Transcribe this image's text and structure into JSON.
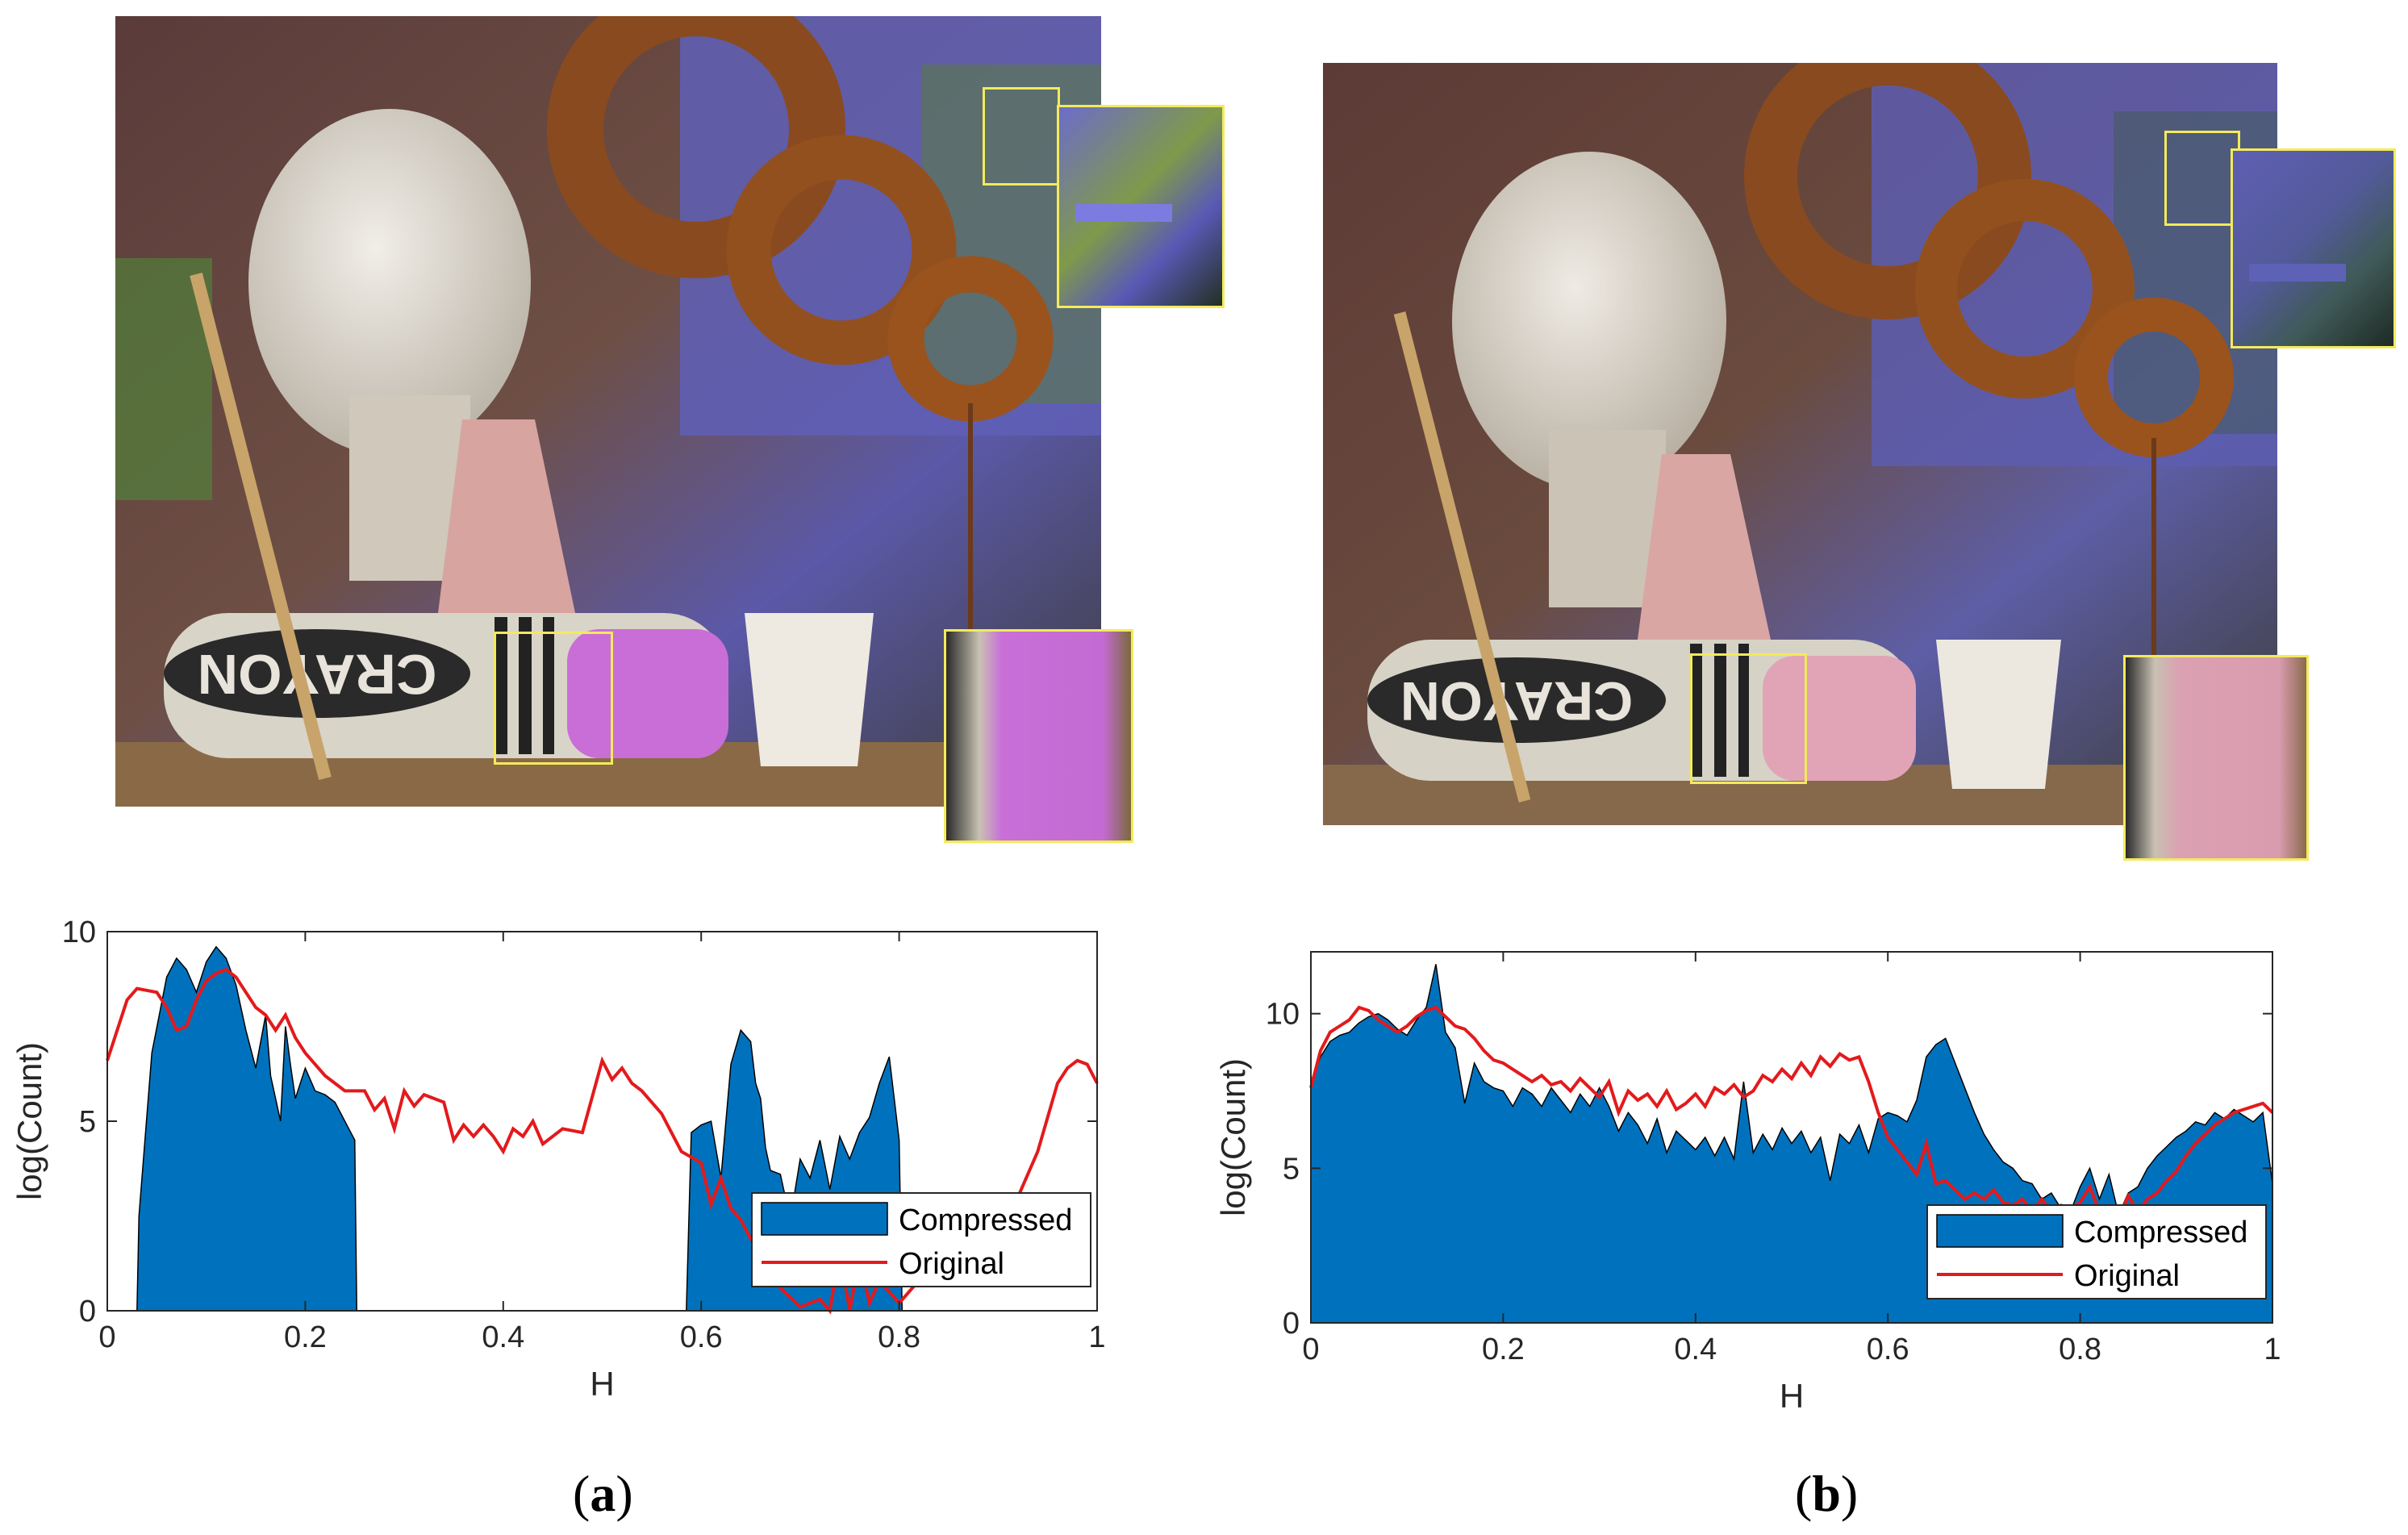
{
  "figure": {
    "label_a": "(a)",
    "label_a_letter": "a",
    "label_b": "(b)",
    "label_b_letter": "b"
  },
  "photos": [
    {
      "panel": "a",
      "crayon_text": "CRAYON",
      "variant": "compressed"
    },
    {
      "panel": "b",
      "crayon_text": "CRAYON",
      "variant": "original"
    }
  ],
  "colors": {
    "compressed_fill": "#0072bd",
    "original_line": "#e31a1c",
    "roi_box": "#f3ea5b"
  },
  "chart_data": [
    {
      "type": "area",
      "panel": "a",
      "xlabel": "H",
      "ylabel": "log(Count)",
      "xlim": [
        0,
        1
      ],
      "ylim": [
        0,
        10
      ],
      "xticks": [
        "0",
        "0.2",
        "0.4",
        "0.6",
        "0.8",
        "1"
      ],
      "yticks": [
        "0",
        "5",
        "10"
      ],
      "legend_position": "bottom-right",
      "series": [
        {
          "name": "Compressed",
          "style": "filled-area",
          "x": [
            0,
            0.03,
            0.032,
            0.045,
            0.06,
            0.07,
            0.08,
            0.09,
            0.1,
            0.11,
            0.12,
            0.13,
            0.14,
            0.15,
            0.16,
            0.165,
            0.17,
            0.175,
            0.18,
            0.185,
            0.19,
            0.2,
            0.21,
            0.22,
            0.23,
            0.25,
            0.252,
            0.585,
            0.59,
            0.6,
            0.61,
            0.62,
            0.63,
            0.64,
            0.65,
            0.655,
            0.66,
            0.665,
            0.67,
            0.68,
            0.69,
            0.7,
            0.71,
            0.72,
            0.73,
            0.74,
            0.75,
            0.76,
            0.77,
            0.78,
            0.79,
            0.8,
            0.803,
            1
          ],
          "y": [
            0,
            0,
            2.5,
            6.8,
            8.8,
            9.3,
            9.0,
            8.4,
            9.2,
            9.6,
            9.3,
            8.6,
            7.4,
            6.4,
            7.8,
            6.2,
            5.6,
            5.0,
            7.5,
            6.5,
            5.6,
            6.4,
            5.8,
            5.7,
            5.5,
            4.5,
            0,
            0,
            4.7,
            4.9,
            5.0,
            3.5,
            6.5,
            7.4,
            7.1,
            6.0,
            5.6,
            4.3,
            3.7,
            3.6,
            2.4,
            4.0,
            3.5,
            4.5,
            3.2,
            4.6,
            4.0,
            4.7,
            5.1,
            6.0,
            6.7,
            4.5,
            0,
            0
          ]
        },
        {
          "name": "Original",
          "style": "line",
          "x": [
            0,
            0.02,
            0.03,
            0.05,
            0.06,
            0.07,
            0.08,
            0.09,
            0.1,
            0.11,
            0.12,
            0.13,
            0.14,
            0.15,
            0.16,
            0.17,
            0.18,
            0.19,
            0.2,
            0.22,
            0.24,
            0.26,
            0.27,
            0.28,
            0.29,
            0.3,
            0.31,
            0.32,
            0.34,
            0.35,
            0.36,
            0.37,
            0.38,
            0.39,
            0.4,
            0.41,
            0.42,
            0.43,
            0.44,
            0.46,
            0.48,
            0.5,
            0.51,
            0.52,
            0.53,
            0.54,
            0.56,
            0.58,
            0.6,
            0.61,
            0.62,
            0.63,
            0.64,
            0.65,
            0.66,
            0.67,
            0.68,
            0.7,
            0.72,
            0.73,
            0.74,
            0.75,
            0.76,
            0.77,
            0.78,
            0.79,
            0.8,
            0.82,
            0.84,
            0.86,
            0.88,
            0.9,
            0.92,
            0.94,
            0.95,
            0.96,
            0.97,
            0.98,
            0.99,
            1
          ],
          "y": [
            6.6,
            8.2,
            8.5,
            8.4,
            8.0,
            7.4,
            7.5,
            8.2,
            8.7,
            8.9,
            9.0,
            8.8,
            8.4,
            8.0,
            7.8,
            7.4,
            7.8,
            7.2,
            6.8,
            6.2,
            5.8,
            5.8,
            5.3,
            5.6,
            4.8,
            5.8,
            5.4,
            5.7,
            5.5,
            4.5,
            4.9,
            4.6,
            4.9,
            4.6,
            4.2,
            4.8,
            4.6,
            5.0,
            4.4,
            4.8,
            4.7,
            6.6,
            6.1,
            6.4,
            6.0,
            5.8,
            5.2,
            4.2,
            3.9,
            2.8,
            3.5,
            2.7,
            2.4,
            1.9,
            2.1,
            1.6,
            0.6,
            0.1,
            0.3,
            0.0,
            1.6,
            0.0,
            1.4,
            0.2,
            0.8,
            0.5,
            0.2,
            0.8,
            1.4,
            1.6,
            2.0,
            2.2,
            3.0,
            4.2,
            5.1,
            6.0,
            6.4,
            6.6,
            6.5,
            6.0
          ]
        }
      ]
    },
    {
      "type": "area",
      "panel": "b",
      "xlabel": "H",
      "ylabel": "log(Count)",
      "xlim": [
        0,
        1
      ],
      "ylim": [
        0,
        12
      ],
      "xticks": [
        "0",
        "0.2",
        "0.4",
        "0.6",
        "0.8",
        "1"
      ],
      "yticks": [
        "0",
        "5",
        "10"
      ],
      "legend_position": "bottom-right",
      "series": [
        {
          "name": "Compressed",
          "style": "filled-area",
          "x": [
            0,
            0.01,
            0.02,
            0.03,
            0.04,
            0.05,
            0.06,
            0.07,
            0.08,
            0.09,
            0.1,
            0.11,
            0.12,
            0.13,
            0.14,
            0.15,
            0.16,
            0.17,
            0.18,
            0.19,
            0.2,
            0.21,
            0.22,
            0.23,
            0.24,
            0.25,
            0.26,
            0.27,
            0.28,
            0.29,
            0.3,
            0.31,
            0.32,
            0.33,
            0.34,
            0.35,
            0.36,
            0.37,
            0.38,
            0.39,
            0.4,
            0.41,
            0.42,
            0.43,
            0.44,
            0.45,
            0.46,
            0.47,
            0.48,
            0.49,
            0.5,
            0.51,
            0.52,
            0.53,
            0.54,
            0.55,
            0.56,
            0.57,
            0.58,
            0.59,
            0.6,
            0.61,
            0.62,
            0.63,
            0.64,
            0.65,
            0.66,
            0.67,
            0.68,
            0.69,
            0.7,
            0.71,
            0.72,
            0.73,
            0.74,
            0.75,
            0.76,
            0.77,
            0.78,
            0.79,
            0.8,
            0.81,
            0.82,
            0.83,
            0.84,
            0.85,
            0.86,
            0.87,
            0.88,
            0.89,
            0.9,
            0.91,
            0.92,
            0.93,
            0.94,
            0.95,
            0.96,
            0.97,
            0.98,
            0.99,
            1
          ],
          "y": [
            7.8,
            8.6,
            9.1,
            9.3,
            9.4,
            9.7,
            9.9,
            10.0,
            9.8,
            9.5,
            9.3,
            9.8,
            10.2,
            11.6,
            9.4,
            8.9,
            7.1,
            8.4,
            7.8,
            7.6,
            7.5,
            7.0,
            7.6,
            7.4,
            7.0,
            7.6,
            7.2,
            6.8,
            7.4,
            7.0,
            7.6,
            7.0,
            6.2,
            6.8,
            6.4,
            5.8,
            6.6,
            5.5,
            6.2,
            5.9,
            5.6,
            6.0,
            5.4,
            6.0,
            5.3,
            7.8,
            5.5,
            6.1,
            5.6,
            6.3,
            5.8,
            6.2,
            5.5,
            6.0,
            4.6,
            6.1,
            5.8,
            6.4,
            5.5,
            6.6,
            6.8,
            6.7,
            6.5,
            7.2,
            8.6,
            9.0,
            9.2,
            8.4,
            7.6,
            6.8,
            6.1,
            5.6,
            5.2,
            5.0,
            4.6,
            4.5,
            4.0,
            4.2,
            3.7,
            3.6,
            4.4,
            5.0,
            4.0,
            4.8,
            3.5,
            4.2,
            4.4,
            5.0,
            5.4,
            5.7,
            6.0,
            6.2,
            6.5,
            6.4,
            6.8,
            6.6,
            6.9,
            6.7,
            6.5,
            6.8,
            4.5
          ]
        },
        {
          "name": "Original",
          "style": "line",
          "x": [
            0,
            0.01,
            0.02,
            0.03,
            0.04,
            0.05,
            0.06,
            0.07,
            0.08,
            0.09,
            0.1,
            0.11,
            0.12,
            0.13,
            0.14,
            0.15,
            0.16,
            0.17,
            0.18,
            0.19,
            0.2,
            0.21,
            0.22,
            0.23,
            0.24,
            0.25,
            0.26,
            0.27,
            0.28,
            0.29,
            0.3,
            0.31,
            0.32,
            0.33,
            0.34,
            0.35,
            0.36,
            0.37,
            0.38,
            0.39,
            0.4,
            0.41,
            0.42,
            0.43,
            0.44,
            0.45,
            0.46,
            0.47,
            0.48,
            0.49,
            0.5,
            0.51,
            0.52,
            0.53,
            0.54,
            0.55,
            0.56,
            0.57,
            0.58,
            0.59,
            0.6,
            0.61,
            0.62,
            0.63,
            0.64,
            0.65,
            0.66,
            0.67,
            0.68,
            0.69,
            0.7,
            0.71,
            0.72,
            0.73,
            0.74,
            0.75,
            0.76,
            0.77,
            0.78,
            0.79,
            0.8,
            0.81,
            0.82,
            0.83,
            0.84,
            0.85,
            0.86,
            0.87,
            0.88,
            0.89,
            0.9,
            0.91,
            0.92,
            0.93,
            0.94,
            0.95,
            0.96,
            0.97,
            0.98,
            0.99,
            1
          ],
          "y": [
            7.6,
            8.8,
            9.4,
            9.6,
            9.8,
            10.2,
            10.1,
            9.8,
            9.6,
            9.4,
            9.6,
            9.9,
            10.1,
            10.2,
            9.9,
            9.6,
            9.5,
            9.2,
            8.8,
            8.5,
            8.4,
            8.2,
            8.0,
            7.8,
            8.0,
            7.7,
            7.8,
            7.5,
            7.9,
            7.6,
            7.3,
            7.8,
            6.8,
            7.5,
            7.2,
            7.4,
            7.0,
            7.5,
            6.9,
            7.1,
            7.4,
            7.0,
            7.6,
            7.4,
            7.7,
            7.3,
            7.5,
            8.0,
            7.8,
            8.2,
            7.9,
            8.4,
            8.0,
            8.6,
            8.3,
            8.7,
            8.5,
            8.6,
            7.8,
            6.8,
            6.0,
            5.6,
            5.2,
            4.8,
            5.8,
            4.5,
            4.6,
            4.3,
            4.0,
            4.2,
            4.0,
            4.3,
            3.9,
            3.8,
            4.0,
            3.6,
            4.0,
            3.6,
            3.8,
            3.7,
            3.9,
            4.4,
            3.6,
            3.8,
            3.4,
            4.1,
            3.6,
            4.0,
            4.2,
            4.6,
            4.9,
            5.4,
            5.8,
            6.1,
            6.4,
            6.6,
            6.8,
            6.9,
            7.0,
            7.1,
            6.8
          ]
        }
      ]
    }
  ]
}
